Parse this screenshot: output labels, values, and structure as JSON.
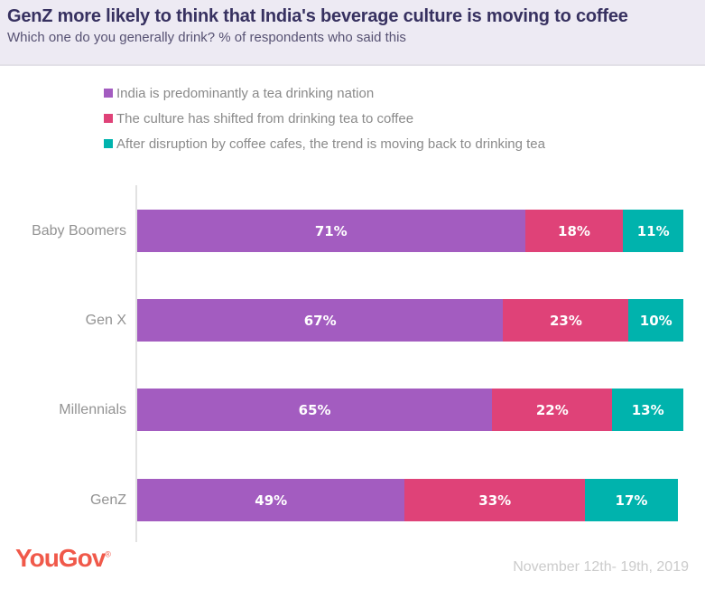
{
  "header": {
    "title": "GenZ more likely to think that India's beverage culture is moving to coffee",
    "subtitle": "Which one do you generally drink? % of respondents who said this"
  },
  "legend": {
    "items": [
      {
        "label": "India is predominantly a tea drinking nation",
        "color": "#a35cc0"
      },
      {
        "label": "The culture has shifted from drinking tea to coffee",
        "color": "#df4278"
      },
      {
        "label": "After disruption by coffee cafes, the trend is moving back to drinking tea",
        "color": "#00b3ad"
      }
    ]
  },
  "chart_data": {
    "type": "bar",
    "orientation": "horizontal",
    "stacked": true,
    "grid": false,
    "legend_position": "top",
    "xlim": [
      0,
      100
    ],
    "value_suffix": "%",
    "categories": [
      "Baby Boomers",
      "Gen X",
      "Millennials",
      "GenZ"
    ],
    "series": [
      {
        "name": "India is predominantly a tea drinking nation",
        "color": "#a35cc0",
        "values": [
          71,
          67,
          65,
          49
        ]
      },
      {
        "name": "The culture has shifted from drinking tea to coffee",
        "color": "#df4278",
        "values": [
          18,
          23,
          22,
          33
        ]
      },
      {
        "name": "After disruption by coffee cafes, the trend is moving back to drinking tea",
        "color": "#00b3ad",
        "values": [
          11,
          10,
          13,
          17
        ]
      }
    ]
  },
  "footer": {
    "logo": "YouGov",
    "logo_registered": "®",
    "logo_color": "#f0594a",
    "date_range": "November 12th- 19th, 2019"
  }
}
